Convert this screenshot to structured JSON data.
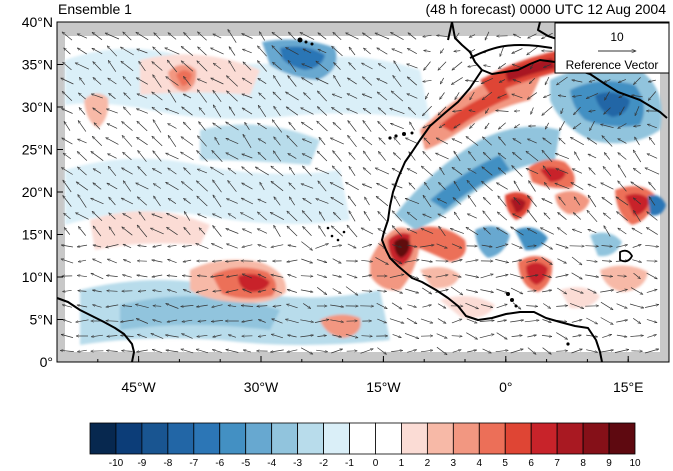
{
  "title_left": "Ensemble 1",
  "title_right": "(48 h forecast) 0000 UTC 12 Aug 2004",
  "reference_vector": {
    "value": "10",
    "label": "Reference Vector"
  },
  "map": {
    "projection": "cylindrical-equidistant",
    "lon_range": [
      -55,
      20
    ],
    "lat_range": [
      0,
      40
    ],
    "lat_ticks": [
      {
        "value": 40,
        "label": "40°N"
      },
      {
        "value": 35,
        "label": "35°N"
      },
      {
        "value": 30,
        "label": "30°N"
      },
      {
        "value": 25,
        "label": "25°N"
      },
      {
        "value": 20,
        "label": "20°N"
      },
      {
        "value": 15,
        "label": "15°N"
      },
      {
        "value": 10,
        "label": "10°N"
      },
      {
        "value": 5,
        "label": "5°N"
      },
      {
        "value": 0,
        "label": "0°"
      }
    ],
    "lon_ticks": [
      {
        "value": -45,
        "label": "45°W"
      },
      {
        "value": -30,
        "label": "30°W"
      },
      {
        "value": -15,
        "label": "15°W"
      },
      {
        "value": 0,
        "label": "0°"
      },
      {
        "value": 15,
        "label": "15°E"
      }
    ],
    "fill_anomalies": [
      {
        "name": "warm-blob-10n-34w",
        "lon": -34,
        "lat": 10,
        "value": 8
      },
      {
        "name": "warm-blob-14n-16w",
        "lon": -16,
        "lat": 14.5,
        "value": 10
      },
      {
        "name": "warm-blob-11n-2e",
        "lon": 2,
        "lat": 11,
        "value": 7
      },
      {
        "name": "warm-blob-18n-13e",
        "lon": 13,
        "lat": 19,
        "value": 7
      },
      {
        "name": "warm-band-30n-10w",
        "lon": -10,
        "lat": 30,
        "value": 7
      },
      {
        "name": "warm-band-34n-2e",
        "lon": 2,
        "lat": 34,
        "value": 8
      },
      {
        "name": "warm-blob-37n-40w",
        "lon": -40,
        "lat": 37,
        "value": 3
      },
      {
        "name": "warm-blob-31n-50w",
        "lon": -50,
        "lat": 31,
        "value": 3
      },
      {
        "name": "warm-blob-4n-22w",
        "lon": -22,
        "lat": 4,
        "value": 4
      },
      {
        "name": "warm-blob-24n-6e",
        "lon": 6,
        "lat": 24,
        "value": 5
      },
      {
        "name": "cool-blob-38n-27w",
        "lon": -27,
        "lat": 38,
        "value": -5
      },
      {
        "name": "cool-blob-33n-10e",
        "lon": 10,
        "lat": 33,
        "value": -5
      },
      {
        "name": "cool-band-5n-40w",
        "lon": -40,
        "lat": 5,
        "value": -2
      },
      {
        "name": "cool-band-22n-7w",
        "lon": -7,
        "lat": 22,
        "value": -4
      },
      {
        "name": "cool-blob-14n-0e",
        "lon": 0,
        "lat": 14,
        "value": -4
      },
      {
        "name": "cool-band-27n-45w",
        "lon": -45,
        "lat": 27,
        "value": -2
      }
    ],
    "wind_field": "low-level easterly trades, northeasterlies turning westerly south of 15N off West Africa"
  },
  "colorbar": {
    "levels": [
      "-10",
      "-9",
      "-8",
      "-7",
      "-6",
      "-5",
      "-4",
      "-3",
      "-2",
      "-1",
      "0",
      "1",
      "2",
      "3",
      "4",
      "5",
      "6",
      "7",
      "8",
      "9",
      "10"
    ],
    "colors": [
      "#07284f",
      "#0c3d78",
      "#195591",
      "#2266a6",
      "#2c76b6",
      "#4390c3",
      "#67a8d0",
      "#91c4dd",
      "#b8dceb",
      "#daeff8",
      "#ffffff",
      "#ffffff",
      "#fbdcd5",
      "#f7b9a7",
      "#f29781",
      "#ec6f58",
      "#df4534",
      "#c8232a",
      "#a91922",
      "#851018",
      "#5e0910"
    ]
  },
  "colors": {
    "coast": "#000000",
    "vector": "#333333",
    "missing": "#c8c8c8"
  }
}
